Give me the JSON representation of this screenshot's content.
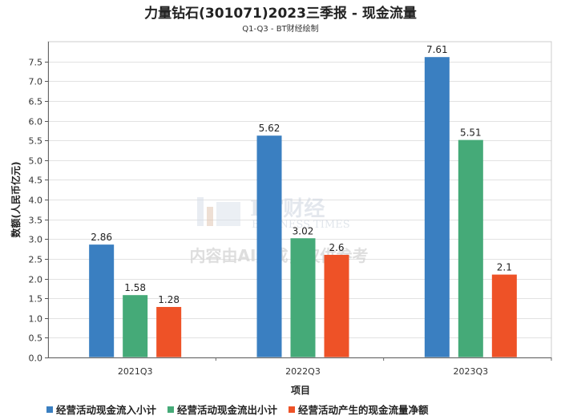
{
  "chart_data": {
    "type": "bar",
    "title": "力量钻石(301071)2023三季报 - 现金流量",
    "subtitle": "Q1-Q3 - BT财经绘制",
    "xlabel": "项目",
    "ylabel": "数额(人民币亿元)",
    "categories": [
      "2021Q3",
      "2022Q3",
      "2023Q3"
    ],
    "ylim": [
      0,
      8.0
    ],
    "yticks": [
      "0.0",
      "0.5",
      "1.0",
      "1.5",
      "2.0",
      "2.5",
      "3.0",
      "3.5",
      "4.0",
      "4.5",
      "5.0",
      "5.5",
      "6.0",
      "6.5",
      "7.0",
      "7.5"
    ],
    "grid": true,
    "legend_position": "bottom",
    "series": [
      {
        "name": "经营活动现金流入小计",
        "color": "#3a7fc1",
        "values": [
          2.86,
          5.62,
          7.61
        ]
      },
      {
        "name": "经营活动现金流出小计",
        "color": "#45aa78",
        "values": [
          1.58,
          3.02,
          5.51
        ]
      },
      {
        "name": "经营活动产生的现金流量净额",
        "color": "#ee5227",
        "values": [
          1.28,
          2.6,
          2.1
        ]
      }
    ]
  },
  "watermark": {
    "brand": "BT财经",
    "brand_sub": "BUSINESS TIMES",
    "notice": "内容由AI生成，仅供参考"
  }
}
